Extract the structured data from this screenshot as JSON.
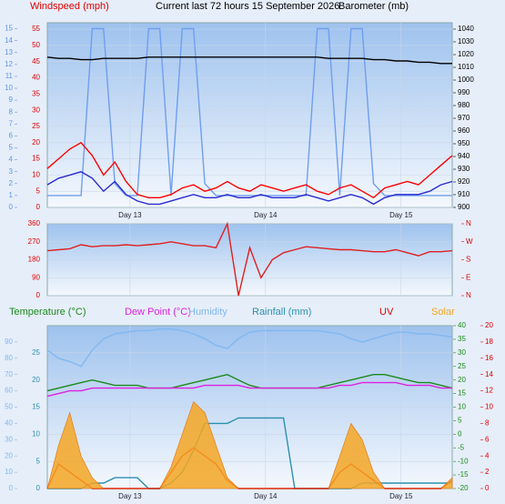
{
  "chart_data": [
    {
      "type": "line",
      "title": "Current last 72 hours 15 September 2026",
      "ylabel": "Windspeed (mph)",
      "y2label": "Barometer (mb)",
      "grid": true,
      "x": [
        0,
        2,
        4,
        6,
        8,
        10,
        12,
        14,
        16,
        18,
        20,
        22,
        24,
        26,
        28,
        30,
        32,
        34,
        36,
        38,
        40,
        42,
        44,
        46,
        48,
        50,
        52,
        54,
        56,
        58,
        60,
        62,
        64,
        66,
        68,
        70,
        72
      ],
      "xlim": [
        0,
        72
      ],
      "xticks": [
        {
          "value": 14.7,
          "label": "Day 13"
        },
        {
          "value": 38.8,
          "label": "Day 14"
        },
        {
          "value": 62.9,
          "label": "Day 15"
        }
      ],
      "ylim": [
        0,
        57
      ],
      "yticks": [
        0,
        5,
        10,
        15,
        20,
        25,
        30,
        35,
        40,
        45,
        50,
        55
      ],
      "y2lim": [
        900,
        1045
      ],
      "y2ticks": [
        900,
        910,
        920,
        930,
        940,
        950,
        960,
        970,
        980,
        990,
        1000,
        1010,
        1020,
        1030,
        1040
      ],
      "y3lim": [
        0,
        15.5
      ],
      "y3ticks": [
        0,
        1,
        2,
        3,
        4,
        5,
        6,
        7,
        8,
        9,
        10,
        11,
        12,
        13,
        14,
        15
      ],
      "series": [
        {
          "color": "#6f9ef0",
          "axis": "y3",
          "values": [
            1,
            1,
            1,
            1,
            15,
            15,
            2,
            1,
            1,
            15,
            15,
            1,
            15,
            15,
            2,
            1,
            1,
            1,
            1,
            1,
            1,
            1,
            1,
            1,
            15,
            15,
            1,
            15,
            15,
            2,
            1,
            1,
            1,
            1,
            1,
            1,
            1
          ]
        },
        {
          "color": "#ff0000",
          "values": [
            12,
            15,
            18,
            20,
            16,
            10,
            14,
            8,
            4,
            3,
            3,
            4,
            6,
            7,
            5,
            6,
            8,
            6,
            5,
            7,
            6,
            5,
            6,
            7,
            5,
            4,
            6,
            7,
            5,
            3,
            6,
            7,
            8,
            7,
            10,
            13,
            16
          ]
        },
        {
          "color": "#2a2ad0",
          "values": [
            7,
            9,
            10,
            11,
            9,
            5,
            8,
            4,
            2,
            1,
            1,
            2,
            3,
            4,
            3,
            3,
            4,
            3,
            3,
            4,
            3,
            3,
            3,
            4,
            3,
            2,
            3,
            4,
            3,
            1,
            3,
            4,
            4,
            4,
            5,
            7,
            8
          ]
        },
        {
          "color": "#000000",
          "axis": "y2",
          "values": [
            1018,
            1017,
            1017,
            1016,
            1016,
            1017,
            1017,
            1017,
            1017,
            1018,
            1018,
            1018,
            1018,
            1018,
            1018,
            1018,
            1018,
            1018,
            1018,
            1018,
            1018,
            1018,
            1018,
            1018,
            1018,
            1017,
            1017,
            1017,
            1017,
            1016,
            1016,
            1015,
            1015,
            1014,
            1014,
            1013,
            1013
          ]
        }
      ]
    },
    {
      "type": "line",
      "grid": true,
      "x": [
        0,
        2,
        4,
        6,
        8,
        10,
        12,
        14,
        16,
        18,
        20,
        22,
        24,
        26,
        28,
        30,
        32,
        34,
        36,
        38,
        40,
        42,
        44,
        46,
        48,
        50,
        52,
        54,
        56,
        58,
        60,
        62,
        64,
        66,
        68,
        70,
        72
      ],
      "xlim": [
        0,
        72
      ],
      "xticks": [
        14.7,
        38.8,
        62.9
      ],
      "ylim": [
        0,
        360
      ],
      "yticks": [
        0,
        90,
        180,
        270,
        360
      ],
      "y2lim": [
        0,
        360
      ],
      "y2ticks": [
        {
          "value": 0,
          "label": "N"
        },
        {
          "value": 90,
          "label": "E"
        },
        {
          "value": 180,
          "label": "S"
        },
        {
          "value": 270,
          "label": "W"
        },
        {
          "value": 360,
          "label": "N"
        }
      ],
      "series": [
        {
          "color": "#e02020",
          "values": [
            225,
            230,
            235,
            255,
            245,
            250,
            250,
            255,
            250,
            255,
            260,
            270,
            260,
            250,
            250,
            240,
            360,
            0,
            240,
            90,
            180,
            215,
            230,
            245,
            240,
            235,
            230,
            230,
            225,
            220,
            220,
            230,
            215,
            200,
            220,
            220,
            225
          ]
        }
      ]
    },
    {
      "type": "line",
      "grid": true,
      "x": [
        0,
        2,
        4,
        6,
        8,
        10,
        12,
        14,
        16,
        18,
        20,
        22,
        24,
        26,
        28,
        30,
        32,
        34,
        36,
        38,
        40,
        42,
        44,
        46,
        48,
        50,
        52,
        54,
        56,
        58,
        60,
        62,
        64,
        66,
        68,
        70,
        72
      ],
      "xlim": [
        0,
        72
      ],
      "xticks": [
        {
          "value": 14.7,
          "label": "Day 13"
        },
        {
          "value": 38.8,
          "label": "Day 14"
        },
        {
          "value": 62.9,
          "label": "Day 15"
        }
      ],
      "ylim": [
        0,
        30
      ],
      "yticks": [
        0,
        5,
        10,
        15,
        20,
        25
      ],
      "y2lim": [
        -20,
        40
      ],
      "y2ticks": [
        -20,
        -15,
        -10,
        -5,
        0,
        5,
        10,
        15,
        20,
        25,
        30,
        35,
        40
      ],
      "y3lim": [
        0,
        100
      ],
      "y3ticks": [
        0,
        10,
        20,
        30,
        40,
        50,
        60,
        70,
        80,
        90
      ],
      "y4lim": [
        0,
        20
      ],
      "y4ticks": [
        0,
        2,
        4,
        6,
        8,
        10,
        12,
        14,
        16,
        18,
        20
      ],
      "series": [
        {
          "name": "Temperature (°C)",
          "color": "#1a8a1a",
          "axis": "y2",
          "values": [
            16,
            17,
            18,
            19,
            20,
            19,
            18,
            18,
            18,
            17,
            17,
            17,
            18,
            19,
            20,
            21,
            22,
            20,
            18,
            17,
            17,
            17,
            17,
            17,
            17,
            18,
            19,
            20,
            21,
            22,
            22,
            21,
            20,
            19,
            19,
            18,
            17
          ]
        },
        {
          "name": "Dew Point (°C)",
          "color": "#e020e0",
          "axis": "y2",
          "values": [
            14,
            15,
            16,
            16,
            17,
            17,
            17,
            17,
            17,
            17,
            17,
            17,
            17,
            17,
            18,
            18,
            18,
            18,
            17,
            17,
            17,
            17,
            17,
            17,
            17,
            17,
            18,
            18,
            19,
            19,
            19,
            19,
            18,
            18,
            18,
            17,
            17
          ]
        },
        {
          "name": "Humidity",
          "color": "#80b8f0",
          "axis": "y3",
          "values": [
            85,
            80,
            78,
            75,
            85,
            92,
            95,
            96,
            97,
            97,
            98,
            98,
            97,
            95,
            92,
            88,
            86,
            92,
            96,
            97,
            97,
            97,
            97,
            97,
            97,
            96,
            95,
            92,
            90,
            92,
            94,
            96,
            96,
            95,
            95,
            94,
            93
          ]
        },
        {
          "name": "Rainfall (mm)",
          "color": "#2a90b0",
          "values": [
            0,
            0,
            0,
            0,
            1,
            1,
            2,
            2,
            2,
            0,
            0,
            1,
            3,
            7,
            12,
            12,
            12,
            13,
            13,
            13,
            13,
            13,
            0,
            0,
            0,
            0,
            0,
            0,
            1,
            1,
            1,
            1,
            1,
            1,
            1,
            1,
            1
          ]
        },
        {
          "name": "UV",
          "color": "#dd0000",
          "axis": "y4",
          "values": [
            0,
            3,
            2,
            1,
            0,
            0,
            0,
            0,
            0,
            0,
            0,
            2,
            4,
            5,
            4,
            3,
            1,
            0,
            0,
            0,
            0,
            0,
            0,
            0,
            0,
            0,
            2,
            3,
            2,
            1,
            0,
            0,
            0,
            0,
            0,
            0,
            1
          ]
        },
        {
          "name": "Solar",
          "color": "#f5a623",
          "style": "area",
          "values": [
            0,
            8,
            14,
            6,
            2,
            0,
            0,
            0,
            0,
            0,
            0,
            4,
            10,
            16,
            14,
            8,
            2,
            0,
            0,
            0,
            0,
            0,
            0,
            0,
            0,
            0,
            6,
            12,
            9,
            3,
            0,
            0,
            0,
            0,
            0,
            0,
            2
          ]
        }
      ]
    }
  ]
}
